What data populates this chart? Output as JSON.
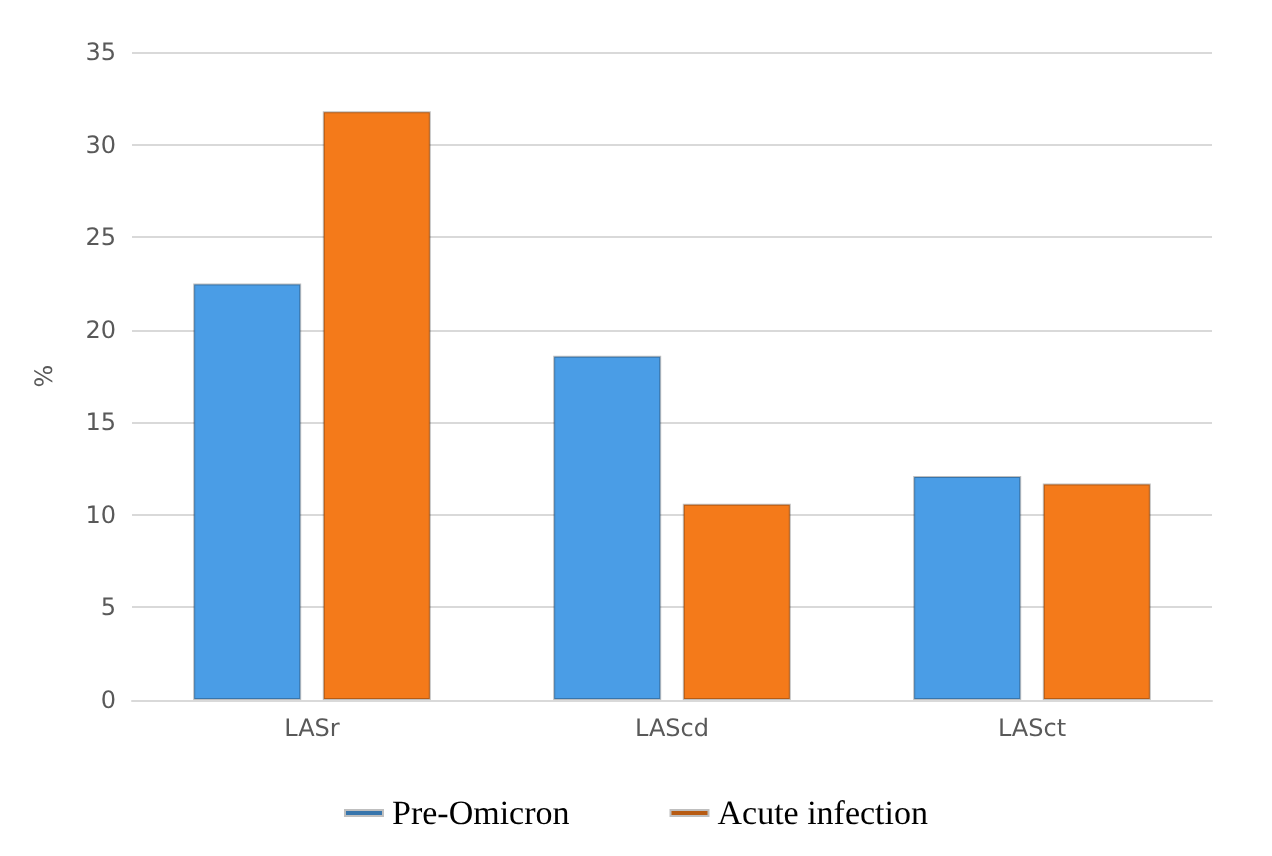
{
  "chart_data": {
    "type": "bar",
    "ylabel": "%",
    "categories": [
      "LASr",
      "LAScd",
      "LASct"
    ],
    "series": [
      {
        "name": "Pre-Omicron",
        "color": "#4a9de6",
        "values": [
          22.5,
          18.6,
          12.1
        ]
      },
      {
        "name": "Acute infection",
        "color": "#f47a1a",
        "values": [
          31.8,
          10.6,
          11.7
        ]
      }
    ],
    "ylim": [
      0,
      35
    ],
    "yticks": [
      0,
      5,
      10,
      15,
      20,
      25,
      30,
      35
    ],
    "grid": "y",
    "legend": "bottom"
  }
}
